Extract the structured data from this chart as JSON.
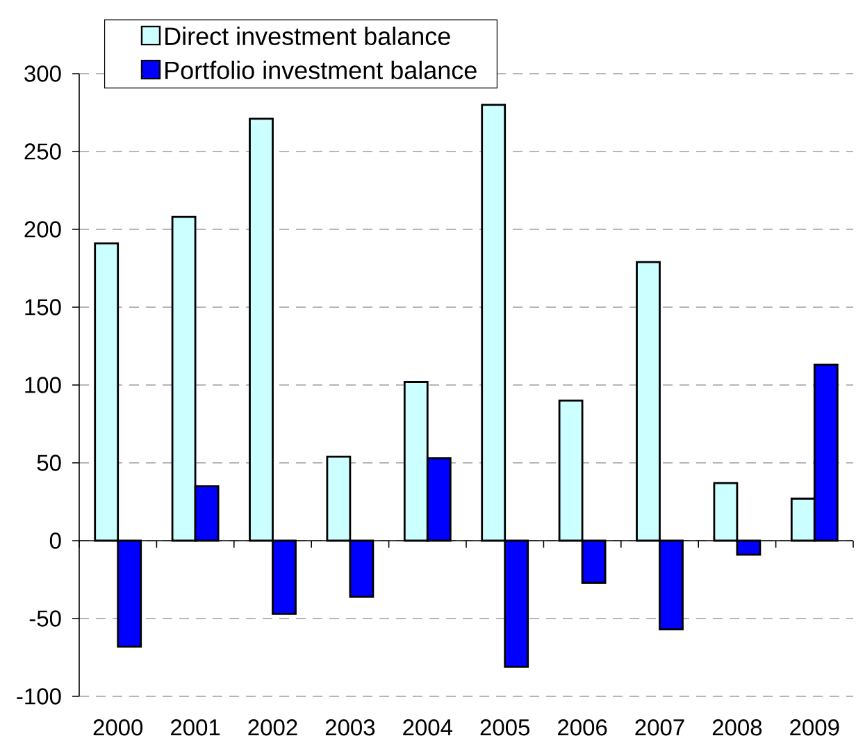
{
  "chart_data": {
    "type": "bar",
    "categories": [
      "2000",
      "2001",
      "2002",
      "2003",
      "2004",
      "2005",
      "2006",
      "2007",
      "2008",
      "2009"
    ],
    "series": [
      {
        "name": "Direct investment balance",
        "color": "#ccffff",
        "values": [
          191,
          208,
          271,
          54,
          102,
          280,
          90,
          179,
          37,
          27
        ]
      },
      {
        "name": "Portfolio investment balance",
        "color": "#0000ff",
        "values": [
          -68,
          35,
          -47,
          -36,
          53,
          -81,
          -27,
          -57,
          -9,
          113
        ]
      }
    ],
    "ylim": [
      -100,
      300
    ],
    "yticks": [
      -100,
      -50,
      0,
      50,
      100,
      150,
      200,
      250,
      300
    ],
    "grid": "y",
    "legend": "top left"
  }
}
